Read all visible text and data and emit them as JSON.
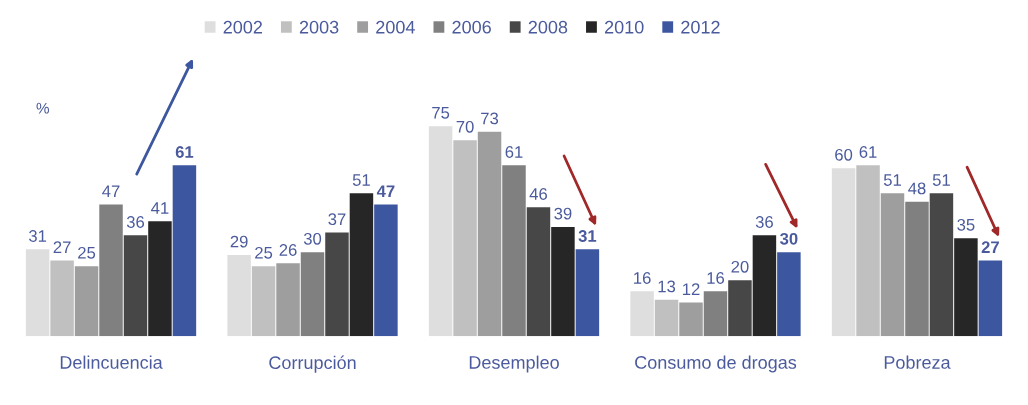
{
  "chart_data": {
    "type": "bar",
    "ylabel": "%",
    "categories": [
      "Delincuencia",
      "Corrupción",
      "Desempleo",
      "Consumo de drogas",
      "Pobreza"
    ],
    "series": [
      {
        "name": "2002",
        "color": "#dedede",
        "values": [
          31,
          29,
          75,
          16,
          60
        ]
      },
      {
        "name": "2003",
        "color": "#c0c0c0",
        "values": [
          27,
          25,
          70,
          13,
          61
        ]
      },
      {
        "name": "2004",
        "color": "#9e9e9e",
        "values": [
          25,
          26,
          73,
          12,
          51
        ]
      },
      {
        "name": "2006",
        "color": "#808080",
        "values": [
          47,
          30,
          61,
          16,
          48
        ]
      },
      {
        "name": "2008",
        "color": "#474747",
        "values": [
          36,
          37,
          46,
          20,
          51
        ]
      },
      {
        "name": "2010",
        "color": "#262626",
        "values": [
          41,
          51,
          39,
          36,
          35
        ]
      },
      {
        "name": "2012",
        "color": "#3c57a0",
        "values": [
          61,
          47,
          31,
          30,
          27
        ]
      }
    ],
    "data_labels": true,
    "legend": "top",
    "grid": false
  }
}
